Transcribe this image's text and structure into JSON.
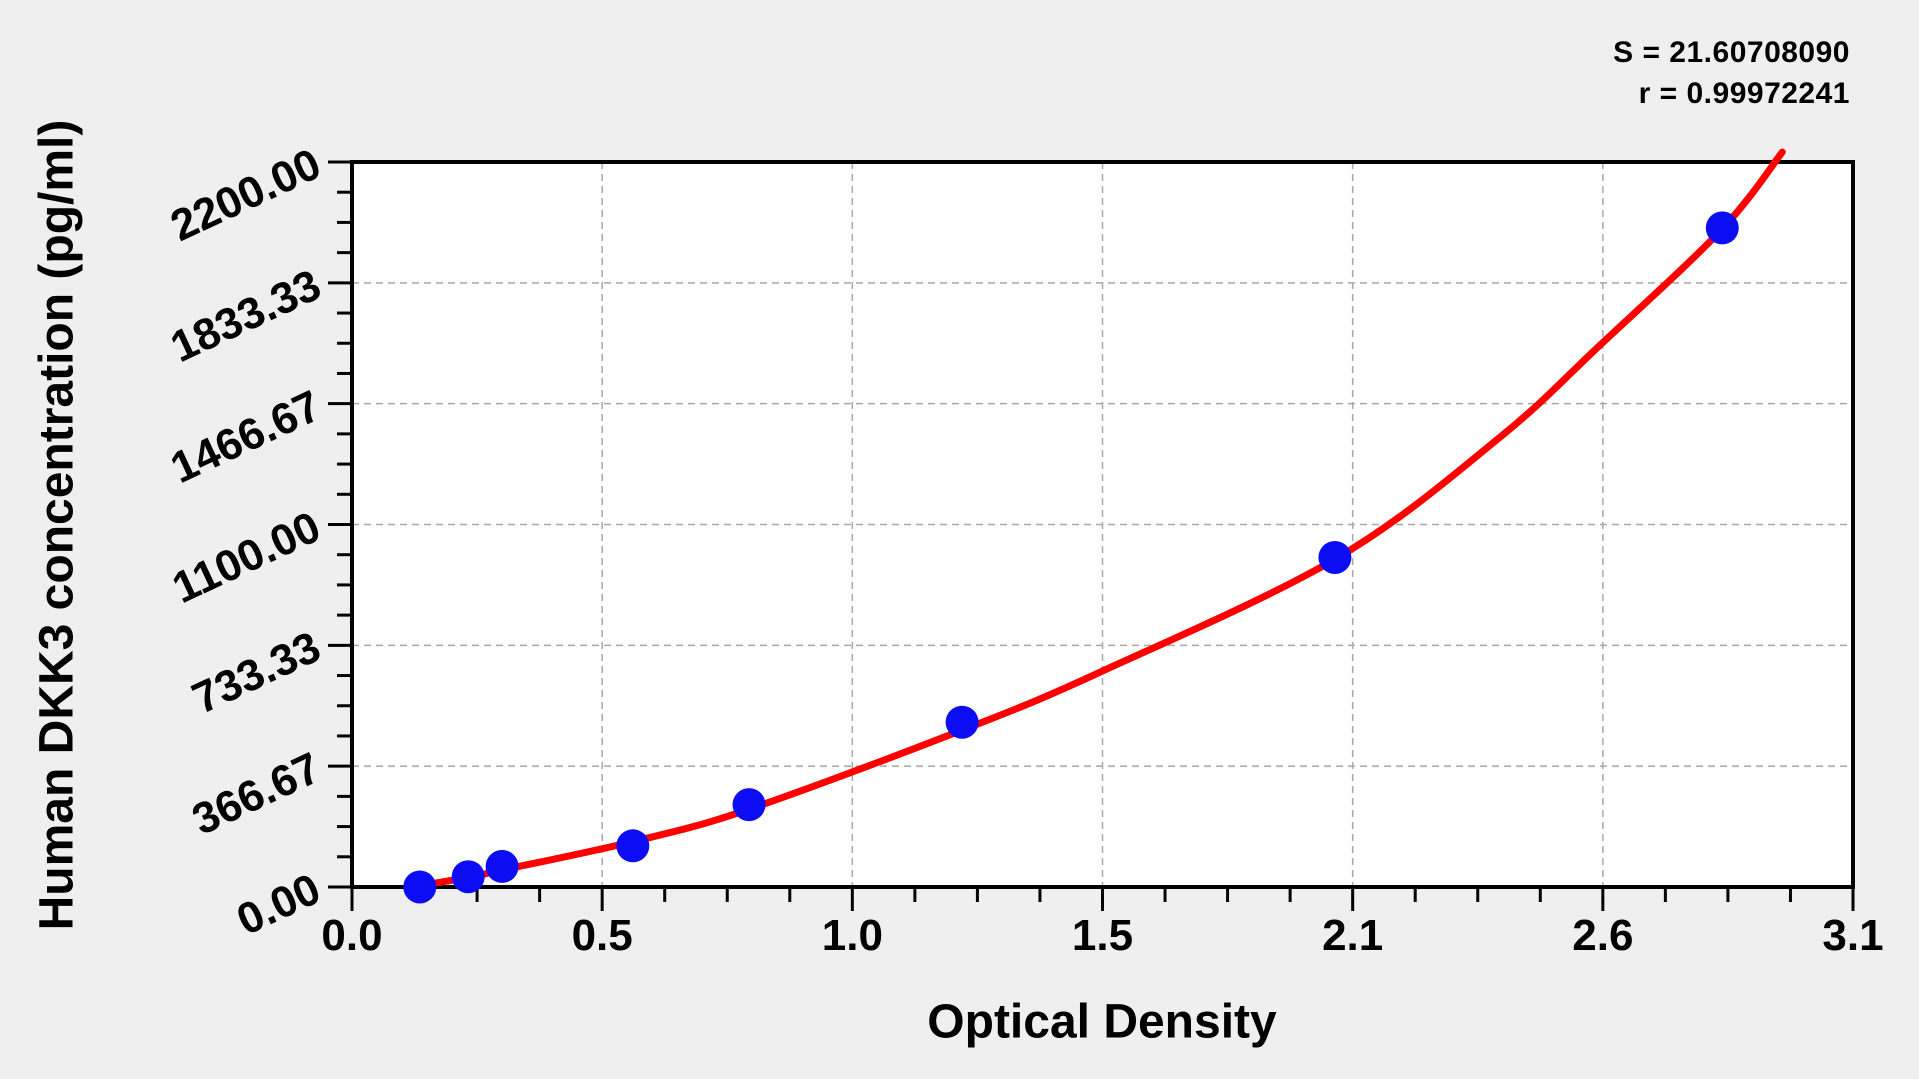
{
  "stats": {
    "s_label": "S = 21.60708090",
    "r_label": "r = 0.99972241"
  },
  "chart_data": {
    "type": "scatter",
    "title": "",
    "xlabel": "Optical Density",
    "ylabel": "Human DKK3 concentration (pg/ml)",
    "xlim": [
      0,
      3.1
    ],
    "ylim": [
      0,
      2200
    ],
    "x_tick_labels": [
      "0.0",
      "0.5",
      "1.0",
      "1.5",
      "2.1",
      "2.6",
      "3.1"
    ],
    "y_tick_labels": [
      "0.00",
      "366.67",
      "733.33",
      "1100.00",
      "1466.67",
      "1833.33",
      "2200.00"
    ],
    "x_minor_ticks_per_division": 3,
    "y_minor_ticks_per_division": 3,
    "grid": "dashed gray lines at major ticks",
    "legend": "none",
    "series": [
      {
        "name": "standard-points",
        "type": "scatter",
        "color": "#0d0df5",
        "points": [
          [
            0.14,
            0
          ],
          [
            0.24,
            31.25
          ],
          [
            0.31,
            62.5
          ],
          [
            0.58,
            125
          ],
          [
            0.82,
            250
          ],
          [
            1.26,
            500
          ],
          [
            2.03,
            1000
          ],
          [
            2.83,
            2000
          ]
        ]
      },
      {
        "name": "fitted-curve",
        "type": "line",
        "color": "#ff0000",
        "points": [
          [
            0.125,
            0
          ],
          [
            0.244,
            30
          ],
          [
            0.312,
            52
          ],
          [
            0.578,
            137
          ],
          [
            0.816,
            234
          ],
          [
            1.26,
            476
          ],
          [
            1.545,
            652
          ],
          [
            2.034,
            998
          ],
          [
            2.371,
            1365
          ],
          [
            2.578,
            1645
          ],
          [
            2.828,
            1994
          ],
          [
            2.954,
            2230
          ]
        ]
      }
    ],
    "colors": {
      "background": "#efefef",
      "plot_background": "#ffffff",
      "axis": "#000000",
      "gridline": "#a8a8a8",
      "curve": "#ff0000",
      "point": "#0d0df5",
      "text": "#000000"
    }
  }
}
